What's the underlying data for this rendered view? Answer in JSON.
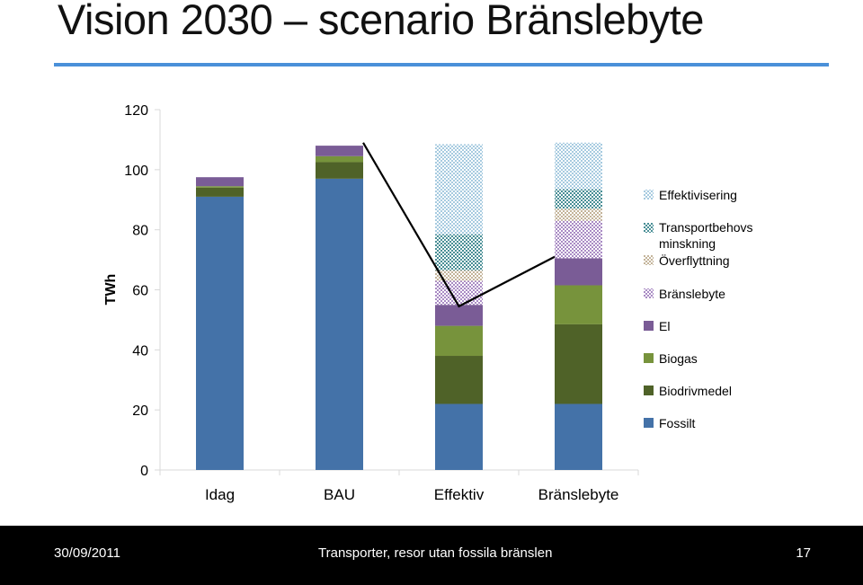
{
  "slide": {
    "title": "Vision 2030 – scenario Bränslebyte"
  },
  "footer": {
    "date": "30/09/2011",
    "text": "Transporter, resor utan fossila bränslen",
    "page": "17"
  },
  "colors": {
    "title_rule": "#4a90d9",
    "connector": "#000000",
    "axis": "#d9d9d9"
  },
  "chart_data": {
    "type": "bar",
    "stacked": true,
    "ylabel": "TWh",
    "ylim": [
      0,
      120
    ],
    "yticks": [
      0,
      20,
      40,
      60,
      80,
      100,
      120
    ],
    "grid": false,
    "legend_position": "right",
    "categories": [
      "Idag",
      "BAU",
      "Effektiv",
      "Bränslebyte"
    ],
    "series": [
      {
        "name": "Fossilt",
        "color": "#4472a8",
        "pattern": "solid",
        "values": [
          91,
          97,
          22,
          22
        ]
      },
      {
        "name": "Biodrivmedel",
        "color": "#4f6228",
        "pattern": "solid",
        "values": [
          3,
          5.5,
          16,
          26.5
        ]
      },
      {
        "name": "Biogas",
        "color": "#77933c",
        "pattern": "solid",
        "values": [
          0.5,
          2,
          10,
          13
        ]
      },
      {
        "name": "El",
        "color": "#7a5c96",
        "pattern": "solid",
        "values": [
          3,
          3.5,
          7,
          9
        ]
      },
      {
        "name": "Bränslebyte",
        "color": "#a98bc4",
        "pattern": "dots",
        "values": [
          0,
          0,
          8,
          12.5
        ]
      },
      {
        "name": "Överflyttning",
        "color": "#c4b49a",
        "pattern": "dots",
        "values": [
          0,
          0,
          3.5,
          4
        ]
      },
      {
        "name": "Transportbehovs minskning",
        "color": "#4a8f96",
        "pattern": "dots",
        "values": [
          0,
          0,
          12,
          6.5
        ]
      },
      {
        "name": "Effektivisering",
        "color": "#a7cbe0",
        "pattern": "dots",
        "values": [
          0,
          0,
          30,
          15.5
        ]
      }
    ],
    "legend_order": [
      "Effektivisering",
      "Transportbehovs minskning",
      "Överflyttning",
      "Bränslebyte",
      "El",
      "Biogas",
      "Biodrivmedel",
      "Fossilt"
    ],
    "connector_line": {
      "description_points": [
        {
          "category": "BAU",
          "value": 109
        },
        {
          "category": "Effektiv",
          "value": 54.5
        },
        {
          "category": "Bränslebyte",
          "value": 71
        }
      ]
    }
  }
}
